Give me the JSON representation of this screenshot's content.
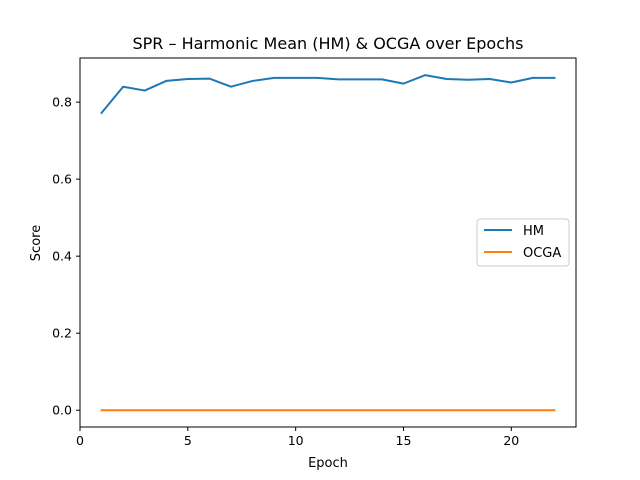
{
  "chart_data": {
    "type": "line",
    "title": "SPR – Harmonic Mean (HM) & OCGA over Epochs",
    "xlabel": "Epoch",
    "ylabel": "Score",
    "xlim": [
      0,
      23
    ],
    "ylim": [
      -0.04355,
      0.91455
    ],
    "xticks": [
      0,
      5,
      10,
      15,
      20
    ],
    "yticks": [
      0.0,
      0.2,
      0.4,
      0.6,
      0.8
    ],
    "ytick_labels": [
      "0.0",
      "0.2",
      "0.4",
      "0.6",
      "0.8"
    ],
    "grid": false,
    "legend_position": "center-right",
    "x": [
      1,
      2,
      3,
      4,
      5,
      6,
      7,
      8,
      9,
      10,
      11,
      12,
      13,
      14,
      15,
      16,
      17,
      18,
      19,
      20,
      21,
      22
    ],
    "series": [
      {
        "name": "HM",
        "color": "#1f77b4",
        "values": [
          0.772,
          0.84,
          0.83,
          0.855,
          0.86,
          0.861,
          0.84,
          0.855,
          0.863,
          0.863,
          0.863,
          0.859,
          0.859,
          0.859,
          0.848,
          0.87,
          0.86,
          0.858,
          0.86,
          0.851,
          0.863,
          0.863
        ]
      },
      {
        "name": "OCGA",
        "color": "#ff7f0e",
        "values": [
          0,
          0,
          0,
          0,
          0,
          0,
          0,
          0,
          0,
          0,
          0,
          0,
          0,
          0,
          0,
          0,
          0,
          0,
          0,
          0,
          0,
          0
        ]
      }
    ]
  }
}
